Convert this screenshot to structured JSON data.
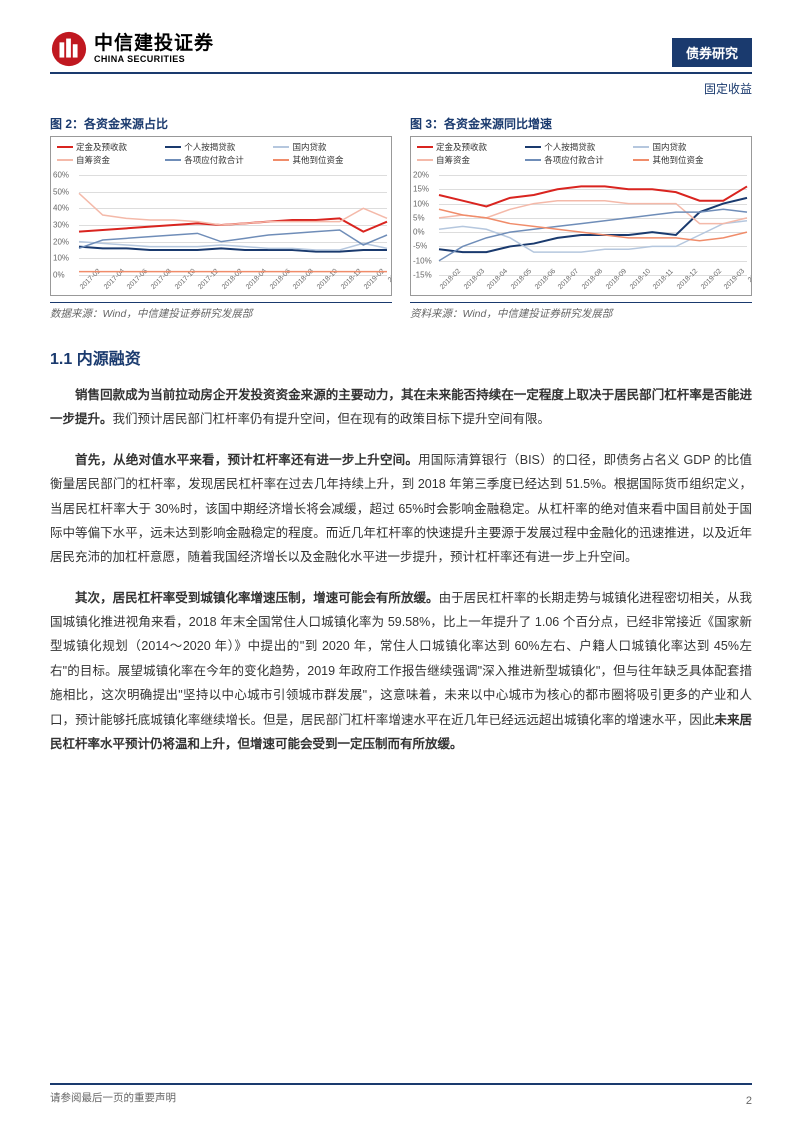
{
  "header": {
    "logo_cn": "中信建投证券",
    "logo_en": "CHINA SECURITIES",
    "badge": "债券研究",
    "sub": "固定收益"
  },
  "chart2": {
    "title": "图 2：各资金来源占比",
    "source": "数据来源：Wind，中信建投证券研究发展部",
    "legend": [
      {
        "label": "定金及预收款",
        "color": "#d9241f"
      },
      {
        "label": "个人按揭贷款",
        "color": "#1a3a6e"
      },
      {
        "label": "国内贷款",
        "color": "#b5c7de"
      },
      {
        "label": "自筹资金",
        "color": "#f4b9a9"
      },
      {
        "label": "各项应付款合计",
        "color": "#6f8db8"
      },
      {
        "label": "其他到位资金",
        "color": "#f08c6a"
      }
    ],
    "yticks": [
      "0%",
      "10%",
      "20%",
      "30%",
      "40%",
      "50%",
      "60%"
    ],
    "ylim": [
      0,
      60
    ],
    "xticks": [
      "2017-02",
      "2017-04",
      "2017-06",
      "2017-08",
      "2017-10",
      "2017-12",
      "2018-02",
      "2018-04",
      "2018-06",
      "2018-08",
      "2018-10",
      "2018-12",
      "2019-02",
      "2019-04"
    ],
    "series": [
      {
        "color": "#d9241f",
        "width": 2,
        "values": [
          26,
          27,
          28,
          29,
          30,
          31,
          30,
          31,
          32,
          33,
          33,
          34,
          26,
          32
        ]
      },
      {
        "color": "#1a3a6e",
        "width": 2,
        "values": [
          17,
          16,
          16,
          15,
          15,
          15,
          16,
          15,
          15,
          15,
          14,
          14,
          15,
          15
        ]
      },
      {
        "color": "#b5c7de",
        "width": 1.5,
        "values": [
          20,
          19,
          18,
          17,
          17,
          17,
          18,
          17,
          16,
          16,
          15,
          15,
          19,
          16
        ]
      },
      {
        "color": "#f4b9a9",
        "width": 1.5,
        "values": [
          49,
          36,
          34,
          33,
          33,
          32,
          30,
          31,
          32,
          32,
          32,
          32,
          40,
          34
        ]
      },
      {
        "color": "#6f8db8",
        "width": 1.5,
        "values": [
          16,
          21,
          22,
          23,
          24,
          25,
          20,
          22,
          24,
          25,
          26,
          27,
          18,
          24
        ]
      },
      {
        "color": "#f08c6a",
        "width": 1.5,
        "values": [
          2,
          2,
          2,
          2,
          2,
          2,
          2,
          2,
          2,
          2,
          2,
          2,
          2,
          2
        ]
      }
    ]
  },
  "chart3": {
    "title": "图 3：各资金来源同比增速",
    "source": "资料来源：Wind，中信建投证券研究发展部",
    "legend": [
      {
        "label": "定金及预收款",
        "color": "#d9241f"
      },
      {
        "label": "个人按揭贷款",
        "color": "#1a3a6e"
      },
      {
        "label": "国内贷款",
        "color": "#b5c7de"
      },
      {
        "label": "自筹资金",
        "color": "#f4b9a9"
      },
      {
        "label": "各项应付款合计",
        "color": "#6f8db8"
      },
      {
        "label": "其他到位资金",
        "color": "#f08c6a"
      }
    ],
    "yticks": [
      "-15%",
      "-10%",
      "-5%",
      "0%",
      "5%",
      "10%",
      "15%",
      "20%"
    ],
    "ylim": [
      -15,
      20
    ],
    "xticks": [
      "2018-02",
      "2018-03",
      "2018-04",
      "2018-05",
      "2018-06",
      "2018-07",
      "2018-08",
      "2018-09",
      "2018-10",
      "2018-11",
      "2018-12",
      "2019-02",
      "2019-03",
      "2019-04"
    ],
    "series": [
      {
        "color": "#d9241f",
        "width": 2,
        "values": [
          13,
          11,
          9,
          12,
          13,
          15,
          16,
          16,
          15,
          15,
          14,
          11,
          11,
          16
        ]
      },
      {
        "color": "#1a3a6e",
        "width": 2,
        "values": [
          -6,
          -7,
          -7,
          -5,
          -4,
          -2,
          -1,
          -1,
          -1,
          0,
          -1,
          7,
          10,
          12
        ]
      },
      {
        "color": "#b5c7de",
        "width": 1.5,
        "values": [
          1,
          2,
          1,
          -2,
          -7,
          -7,
          -7,
          -6,
          -6,
          -5,
          -5,
          -1,
          3,
          4
        ]
      },
      {
        "color": "#f4b9a9",
        "width": 1.5,
        "values": [
          5,
          6,
          5,
          8,
          10,
          11,
          11,
          11,
          10,
          10,
          10,
          3,
          3,
          5
        ]
      },
      {
        "color": "#6f8db8",
        "width": 1.5,
        "values": [
          -10,
          -5,
          -2,
          0,
          1,
          2,
          3,
          4,
          5,
          6,
          7,
          7,
          8,
          7
        ]
      },
      {
        "color": "#f08c6a",
        "width": 1.5,
        "values": [
          8,
          6,
          5,
          3,
          2,
          1,
          0,
          -1,
          -2,
          -2,
          -2,
          -3,
          -2,
          0
        ]
      }
    ]
  },
  "section": {
    "heading": "1.1 内源融资"
  },
  "p1": {
    "lead": "销售回款成为当前拉动房企开发投资资金来源的主要动力，其在未来能否持续在一定程度上取决于居民部门杠杆率是否能进一步提升。",
    "rest": "我们预计居民部门杠杆率仍有提升空间，但在现有的政策目标下提升空间有限。"
  },
  "p2": {
    "lead": "首先，从绝对值水平来看，预计杠杆率还有进一步上升空间。",
    "rest": "用国际清算银行（BIS）的口径，即债务占名义 GDP 的比值衡量居民部门的杠杆率，发现居民杠杆率在过去几年持续上升，到 2018 年第三季度已经达到 51.5%。根据国际货币组织定义，当居民杠杆率大于 30%时，该国中期经济增长将会减缓，超过 65%时会影响金融稳定。从杠杆率的绝对值来看中国目前处于国际中等偏下水平，远未达到影响金融稳定的程度。而近几年杠杆率的快速提升主要源于发展过程中金融化的迅速推进，以及近年居民充沛的加杠杆意愿，随着我国经济增长以及金融化水平进一步提升，预计杠杆率还有进一步上升空间。"
  },
  "p3": {
    "lead": "其次，居民杠杆率受到城镇化率增速压制，增速可能会有所放缓。",
    "mid": "由于居民杠杆率的长期走势与城镇化进程密切相关，从我国城镇化推进视角来看，2018 年末全国常住人口城镇化率为 59.58%，比上一年提升了 1.06 个百分点，已经非常接近《国家新型城镇化规划（2014～2020 年）》中提出的\"到 2020 年，常住人口城镇化率达到 60%左右、户籍人口城镇化率达到 45%左右\"的目标。展望城镇化率在今年的变化趋势，2019 年政府工作报告继续强调\"深入推进新型城镇化\"，但与往年缺乏具体配套措施相比，这次明确提出\"坚持以中心城市引领城市群发展\"，这意味着，未来以中心城市为核心的都市圈将吸引更多的产业和人口，预计能够托底城镇化率继续增长。但是，居民部门杠杆率增速水平在近几年已经远远超出城镇化率的增速水平，因此",
    "tail": "未来居民杠杆率水平预计仍将温和上升，但增速可能会受到一定压制而有所放缓。"
  },
  "footer": {
    "disclaimer": "请参阅最后一页的重要声明",
    "page": "2"
  },
  "colors": {
    "navy": "#1a3a6e",
    "red": "#d9241f"
  }
}
